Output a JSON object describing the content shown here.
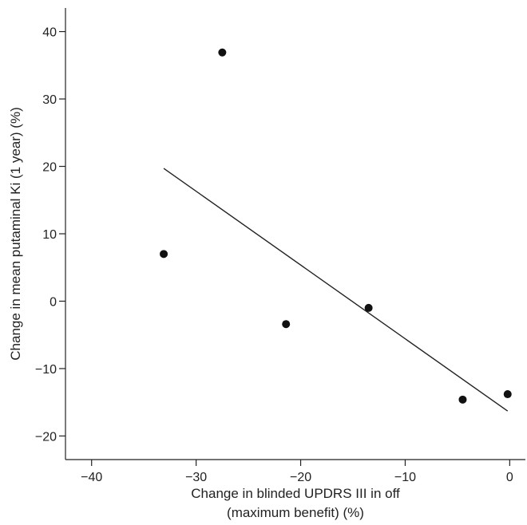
{
  "chart_data": {
    "type": "scatter",
    "points": [
      {
        "x": -33.1,
        "y": 7.0
      },
      {
        "x": -27.5,
        "y": 36.9
      },
      {
        "x": -21.4,
        "y": -3.4
      },
      {
        "x": -13.5,
        "y": -1.0
      },
      {
        "x": -4.5,
        "y": -14.6
      },
      {
        "x": -0.2,
        "y": -13.8
      }
    ],
    "trendline": {
      "x": [
        -33.1,
        -0.2
      ],
      "y": [
        19.7,
        -16.3
      ]
    },
    "xlabel_lines": [
      "Change in blinded UPDRS III in off",
      "(maximum benefit) (%)"
    ],
    "ylabel": "Change in mean putaminal Ki (1 year) (%)",
    "xlim": [
      -42.5,
      1.5
    ],
    "ylim": [
      -23.5,
      43.5
    ],
    "xticks": [
      -40,
      -30,
      -20,
      -10,
      0
    ],
    "xtick_labels": [
      "−40",
      "−30",
      "−20",
      "−10",
      "0"
    ],
    "yticks": [
      -20,
      -10,
      0,
      10,
      20,
      30,
      40
    ],
    "ytick_labels": [
      "−20",
      "−10",
      "0",
      "10",
      "20",
      "30",
      "40"
    ],
    "grid": false,
    "colors": {
      "points": "#111111",
      "line": "#222222"
    }
  }
}
